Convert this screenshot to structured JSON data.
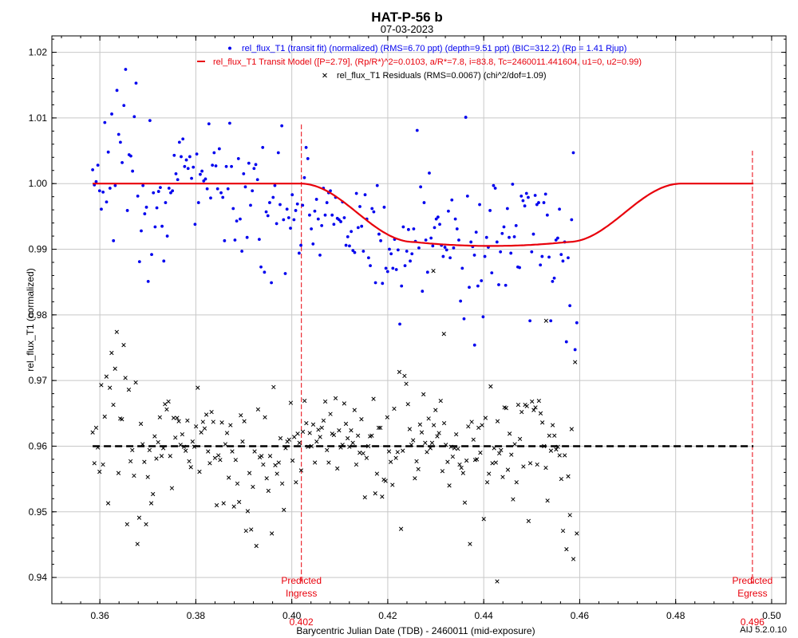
{
  "chart_data": {
    "type": "scatter",
    "title": "HAT-P-56 b",
    "subtitle": "07-03-2023",
    "xlabel": "Barycentric Julian Date (TDB) - 2460011 (mid-exposure)",
    "ylabel": "rel_flux_T1 (normalized)",
    "xlim": [
      0.35,
      0.503
    ],
    "ylim": [
      0.936,
      1.0225
    ],
    "x_ticks": [
      "0.36",
      "0.38",
      "0.40",
      "0.42",
      "0.44",
      "0.46",
      "0.48",
      "0.50"
    ],
    "y_ticks": [
      "0.94",
      "0.95",
      "0.96",
      "0.97",
      "0.98",
      "0.99",
      "1.00",
      "1.01",
      "1.02"
    ],
    "grid": true,
    "legend_position": "top",
    "legend": [
      {
        "label": "rel_flux_T1 (transit fit) (normalized) (RMS=6.70 ppt) (depth=9.51 ppt) (BIC=312.2) (Rp = 1.41 Rjup)",
        "color": "#0000ee",
        "symbol": "dot"
      },
      {
        "label": "rel_flux_T1 Transit Model ([P=2.79], (Rp/R*)^2=0.0103, a/R*=7.8, i=83.8, Tc=2460011.441604, u1=0, u2=0.99)",
        "color": "#e8000b",
        "symbol": "line"
      },
      {
        "label": "rel_flux_T1 Residuals (RMS=0.0067) (chi^2/dof=1.09)",
        "color": "#000000",
        "symbol": "cross"
      }
    ],
    "model": {
      "baseline": 1.0,
      "depth": 0.0095,
      "ingress_start": 0.4018,
      "ingress_end": 0.4255,
      "egress_start": 0.4575,
      "egress_end": 0.4812,
      "x_start": 0.3585,
      "x_end": 0.4962,
      "curvature": 0.0006
    },
    "residual_offset": 0.96,
    "markers": [
      {
        "x": 0.402,
        "label_top": "Predicted",
        "label_bottom": "Ingress",
        "value_label": "0.402",
        "y_top": 1.009
      },
      {
        "x": 0.496,
        "label_top": "Predicted",
        "label_bottom": "Egress",
        "value_label": "0.496",
        "y_top": 1.005
      }
    ],
    "series": [
      {
        "name": "rel_flux_T1 (transit fit) (normalized)",
        "color": "#0000ee",
        "x_start": 0.3585,
        "x_end": 0.4594,
        "y": [
          1.0021,
          0.9998,
          1.0003,
          1.0028,
          0.9989,
          0.9961,
          0.9987,
          1.0093,
          0.9972,
          1.0048,
          0.9993,
          1.0106,
          0.9913,
          0.9997,
          1.0142,
          1.0075,
          1.0063,
          1.0032,
          1.0119,
          1.0174,
          0.9959,
          1.0044,
          1.0042,
          1.0019,
          1.0102,
          1.0153,
          0.9981,
          0.9881,
          0.9928,
          0.9997,
          0.9954,
          0.9964,
          0.9851,
          1.0096,
          0.9892,
          0.9986,
          0.9934,
          0.9963,
          0.9988,
          0.9994,
          0.9935,
          0.9882,
          0.9971,
          0.992,
          0.9993,
          0.9986,
          0.9989,
          1.0043,
          1.0015,
          1.0006,
          1.0063,
          1.0041,
          1.0068,
          1.0026,
          1.0036,
          1.0023,
          1.0041,
          1.0008,
          1.0025,
          0.9938,
          1.0045,
          0.9971,
          1.0014,
          1.0019,
          1.0004,
          1.0007,
          0.9992,
          1.0091,
          0.9978,
          1.0028,
          1.0047,
          1.0027,
          0.9992,
          1.0053,
          0.9986,
          0.9979,
          0.9913,
          1.0026,
          0.9992,
          1.0092,
          1.0026,
          0.9962,
          0.9914,
          0.9943,
          1.0038,
          0.9946,
          0.9897,
          1.0015,
          0.9995,
          0.9918,
          1.0031,
          0.9967,
          0.9989,
          1.0023,
          1.0029,
          1.0006,
          0.9915,
          0.9873,
          1.0055,
          0.9865,
          0.9957,
          0.9951,
          0.9971,
          0.9849,
          0.9979,
          0.9997,
          0.9939,
          1.0047,
          0.9968,
          1.0088,
          0.9945,
          0.9863,
          0.9961,
          0.9948,
          0.9932,
          0.9983,
          0.9945,
          0.9959,
          0.9969,
          0.9894,
          0.9906,
          0.9967,
          1.0009,
          1.0055,
          1.0038,
          0.9952,
          0.9931,
          0.9908,
          0.9958,
          0.9976,
          0.9946,
          0.9891,
          0.9936,
          0.9993,
          0.9952,
          0.9971,
          0.9986,
          0.9989,
          0.9952,
          0.9938,
          0.9979,
          0.9947,
          0.9945,
          0.9942,
          0.9972,
          0.9948,
          0.9906,
          0.9919,
          0.9905,
          0.9927,
          0.9898,
          0.9895,
          0.9985,
          0.9933,
          0.9965,
          0.9935,
          0.9897,
          0.9983,
          0.9946,
          0.9887,
          0.9875,
          0.9962,
          0.9957,
          0.9849,
          0.9997,
          0.9923,
          0.9913,
          0.9848,
          0.9964,
          0.9871,
          0.9866,
          0.99,
          0.9893,
          0.9871,
          0.9915,
          0.9869,
          0.9899,
          0.9786,
          0.9844,
          0.9934,
          0.9875,
          0.9897,
          0.993,
          0.9882,
          0.9893,
          0.9931,
          0.9912,
          1.0081,
          0.9902,
          0.9995,
          0.9836,
          0.9971,
          0.9914,
          0.9865,
          1.0016,
          0.9917,
          0.9905,
          0.9933,
          0.9946,
          0.9949,
          0.9938,
          0.9906,
          0.9889,
          0.9903,
          0.9899,
          0.9958,
          0.9887,
          0.9975,
          0.9902,
          0.9946,
          0.9931,
          0.9914,
          0.9821,
          0.9871,
          0.9794,
          1.0101,
          0.9981,
          0.9842,
          0.9911,
          0.9904,
          0.9891,
          0.9926,
          0.9844,
          0.9968,
          0.9852,
          0.9797,
          0.9889,
          0.9918,
          0.9903,
          0.9959,
          0.9864,
          0.9997,
          0.9993,
          0.9911,
          0.9846,
          0.9896,
          0.9924,
          0.9934,
          0.9845,
          0.9962,
          0.9918,
          0.9894,
          0.9999,
          0.9919,
          0.9936,
          0.9873,
          0.9872,
          0.9981,
          0.9974,
          0.9966,
          0.9985,
          0.9979,
          0.9791,
          0.9896,
          0.9923,
          0.9982,
          0.9968,
          0.9971,
          0.9876,
          0.9889,
          0.9971,
          0.9984,
          0.9952,
          0.9888,
          0.9791,
          0.9851,
          0.9856,
          0.9914,
          0.9917,
          0.9961,
          0.9892,
          0.9882,
          0.9911,
          0.9759,
          0.9887,
          0.9814,
          0.9945,
          1.0047,
          0.9747,
          0.9788
        ]
      },
      {
        "name": "rel_flux_T1 Residuals",
        "color": "#000000",
        "x_start": 0.3585,
        "x_end": 0.4594,
        "y": [
          0.9621,
          0.9574,
          0.9628,
          0.9598,
          0.9561,
          0.9693,
          0.9572,
          0.9645,
          0.9706,
          0.9513,
          0.9689,
          0.9742,
          0.9663,
          0.9718,
          0.9774,
          0.9559,
          0.9642,
          0.9641,
          0.9754,
          0.9704,
          0.9481,
          0.9686,
          0.9577,
          0.9594,
          0.9555,
          0.9697,
          0.9451,
          0.9491,
          0.9634,
          0.9603,
          0.9576,
          0.9481,
          0.9553,
          0.9594,
          0.9513,
          0.9527,
          0.9615,
          0.9581,
          0.9606,
          0.9644,
          0.9585,
          0.9597,
          0.9664,
          0.9656,
          0.9668,
          0.9585,
          0.9536,
          0.9643,
          0.9613,
          0.9643,
          0.9638,
          0.9602,
          0.9618,
          0.9599,
          0.9593,
          0.9639,
          0.9577,
          0.9568,
          0.9607,
          0.9599,
          0.963,
          0.9689,
          0.9561,
          0.9621,
          0.9637,
          0.9627,
          0.9648,
          0.9592,
          0.9574,
          0.9652,
          0.9637,
          0.9582,
          0.951,
          0.9586,
          0.9579,
          0.9636,
          0.9513,
          0.9603,
          0.962,
          0.9552,
          0.9632,
          0.9592,
          0.9508,
          0.9579,
          0.9543,
          0.9515,
          0.9647,
          0.9607,
          0.9638,
          0.9471,
          0.9501,
          0.9559,
          0.9473,
          0.9538,
          0.9592,
          0.9448,
          0.9656,
          0.9583,
          0.9585,
          0.9572,
          0.9644,
          0.9551,
          0.9532,
          0.9585,
          0.9467,
          0.969,
          0.9571,
          0.9558,
          0.9575,
          0.9612,
          0.9543,
          0.9503,
          0.9597,
          0.9607,
          0.961,
          0.9666,
          0.9578,
          0.9614,
          0.9545,
          0.9619,
          0.9605,
          0.9563,
          0.9622,
          0.9669,
          0.9635,
          0.9599,
          0.962,
          0.96,
          0.9633,
          0.9575,
          0.9607,
          0.9625,
          0.9614,
          0.9628,
          0.9639,
          0.9668,
          0.9594,
          0.9575,
          0.9649,
          0.9619,
          0.9617,
          0.9673,
          0.9566,
          0.9624,
          0.9598,
          0.9602,
          0.9665,
          0.9634,
          0.9612,
          0.9599,
          0.9624,
          0.9605,
          0.9655,
          0.9572,
          0.9616,
          0.959,
          0.9641,
          0.9589,
          0.9522,
          0.9582,
          0.96,
          0.9615,
          0.9616,
          0.9672,
          0.9528,
          0.9558,
          0.9628,
          0.9628,
          0.9523,
          0.9549,
          0.9547,
          0.9644,
          0.9592,
          0.9576,
          0.9541,
          0.9657,
          0.9582,
          0.9591,
          0.9713,
          0.9474,
          0.9593,
          0.9707,
          0.9695,
          0.9664,
          0.9626,
          0.9602,
          0.9609,
          0.9551,
          0.9577,
          0.9565,
          0.9633,
          0.9621,
          0.9679,
          0.9605,
          0.9591,
          0.9642,
          0.9597,
          0.9605,
          0.9632,
          0.9655,
          0.9615,
          0.962,
          0.9669,
          0.9562,
          0.9635,
          0.9602,
          0.9576,
          0.954,
          0.9599,
          0.9584,
          0.9597,
          0.9618,
          0.9596,
          0.9572,
          0.9567,
          0.9559,
          0.9514,
          0.9578,
          0.963,
          0.9451,
          0.9637,
          0.961,
          0.9579,
          0.958,
          0.9628,
          0.959,
          0.9632,
          0.9489,
          0.9643,
          0.9545,
          0.9558,
          0.9691,
          0.9574,
          0.9597,
          0.9575,
          0.9638,
          0.9589,
          0.9594,
          0.9553,
          0.9659,
          0.9658,
          0.9564,
          0.9619,
          0.9587,
          0.9519,
          0.9603,
          0.9545,
          0.9663,
          0.9611,
          0.9652,
          0.9569,
          0.9663,
          0.9661,
          0.9486,
          0.9574,
          0.9668,
          0.9655,
          0.9659,
          0.9572,
          0.9669,
          0.965,
          0.9636,
          0.96,
          0.9567,
          0.9517,
          0.9616,
          0.9593,
          0.9632,
          0.9616,
          0.9595,
          0.9599,
          0.9586,
          0.955,
          0.9471,
          0.9586,
          0.9443,
          0.9554,
          0.9495,
          0.9626,
          0.9428,
          0.9728,
          0.9467
        ]
      }
    ],
    "outliers": [
      {
        "x": 0.4428,
        "y": 0.9394,
        "kind": "residual"
      },
      {
        "x": 0.4317,
        "y": 0.9771,
        "kind": "residual"
      },
      {
        "x": 0.453,
        "y": 0.9791,
        "kind": "residual"
      },
      {
        "x": 0.4381,
        "y": 0.9754,
        "kind": "flux"
      },
      {
        "x": 0.4295,
        "y": 0.9867,
        "kind": "residual"
      }
    ]
  },
  "footer": {
    "software_version": "AIJ 5.2.0.10"
  }
}
